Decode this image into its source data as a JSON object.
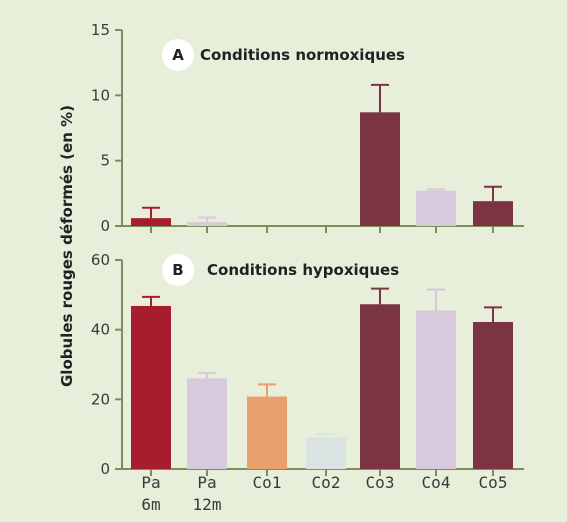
{
  "figure": {
    "background": "#e7efdb"
  },
  "chart_data": [
    {
      "type": "bar",
      "panel_letter": "A",
      "title": "Conditions normoxiques",
      "ylabel": "Globules rouges déformés (en %)",
      "xlabel": "",
      "categories": [
        "Pa\n6m",
        "Pa\n12m",
        "Co1",
        "Co2",
        "Co3",
        "Co4",
        "Co5"
      ],
      "values": [
        0.6,
        0.3,
        0,
        0,
        8.7,
        2.7,
        1.9
      ],
      "errors": [
        0.8,
        0.35,
        0,
        0,
        2.1,
        0.1,
        1.1
      ],
      "colors": [
        "#a81d2e",
        "#d8c9dd",
        "#e8a06c",
        "#d9e3e2",
        "#7b3441",
        "#d8c9dd",
        "#7b3441"
      ],
      "ylim": [
        0,
        15
      ],
      "yticks": [
        "0",
        "5",
        "10",
        "15"
      ],
      "grid": false
    },
    {
      "type": "bar",
      "panel_letter": "B",
      "title": "Conditions hypoxiques",
      "xlabel": "",
      "categories": [
        "Pa\n6m",
        "Pa\n12m",
        "Co1",
        "Co2",
        "Co3",
        "Co4",
        "Co5"
      ],
      "values": [
        46.8,
        26,
        20.8,
        9,
        47.3,
        45.5,
        42.2
      ],
      "errors": [
        2.6,
        1.6,
        3.5,
        1.1,
        4.5,
        6,
        4.2
      ],
      "colors": [
        "#a81d2e",
        "#d8c9dd",
        "#e8a06c",
        "#d9e3e2",
        "#7b3441",
        "#d8c9dd",
        "#7b3441"
      ],
      "ylim": [
        0,
        60
      ],
      "yticks": [
        "0",
        "20",
        "40",
        "60"
      ],
      "grid": false
    }
  ]
}
